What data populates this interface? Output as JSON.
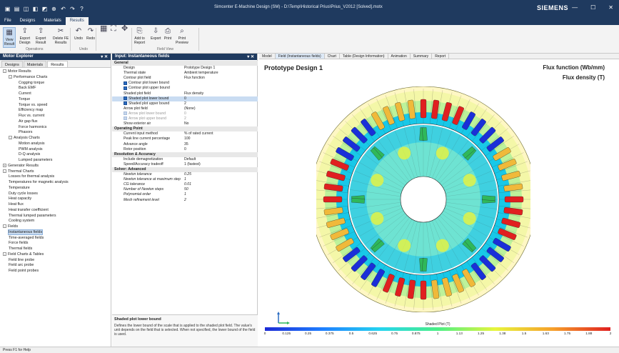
{
  "window": {
    "title": "Simcenter E-Machine Design (SM) - D:\\Temp\\Historical Prius\\Prius_V2012 [Solved].motx",
    "brand": "SIEMENS",
    "controls": [
      "—",
      "☐",
      "✕"
    ]
  },
  "titlebar_icons": [
    "▣",
    "▤",
    "◫",
    "◧",
    "◩",
    "⊕",
    "↶",
    "↷",
    "?"
  ],
  "menu": [
    "File",
    "Designs",
    "Materials",
    "Results"
  ],
  "ribbon": {
    "buttons": [
      {
        "label": "View\nResult",
        "icon": "▦",
        "name": "view-result-button"
      },
      {
        "label": "Export\nDesign",
        "icon": "⇪",
        "name": "export-design-button"
      },
      {
        "label": "Export\nResult",
        "icon": "⇧",
        "name": "export-result-button"
      },
      {
        "label": "Delete FE\nResults",
        "icon": "✂",
        "name": "delete-fe-results-button"
      },
      {
        "label": "Undo",
        "icon": "↶",
        "name": "undo-button"
      },
      {
        "label": "Redo",
        "icon": "↷",
        "name": "redo-button"
      },
      {
        "label": "Add to\nReport",
        "icon": "⎘",
        "name": "add-to-report-button"
      },
      {
        "label": "Export",
        "icon": "⇩",
        "name": "export-button"
      },
      {
        "label": "Print",
        "icon": "⎙",
        "name": "print-button"
      },
      {
        "label": "Print\nPreview",
        "icon": "⌕",
        "name": "print-preview-button"
      }
    ],
    "groups": [
      "Operations",
      "Undo",
      "Field View"
    ]
  },
  "explorer": {
    "title": "Motor Explorer",
    "tabs": [
      "Designs",
      "Materials",
      "Results"
    ],
    "tree": [
      {
        "label": "Motor Results",
        "level": 0,
        "toggle": "-"
      },
      {
        "label": "Performance Charts",
        "level": 1,
        "toggle": "-"
      },
      {
        "label": "Cogging torque",
        "level": 2
      },
      {
        "label": "Back EMF",
        "level": 2
      },
      {
        "label": "Current",
        "level": 2
      },
      {
        "label": "Torque",
        "level": 2
      },
      {
        "label": "Torque vs. speed",
        "level": 2
      },
      {
        "label": "Efficiency map",
        "level": 2
      },
      {
        "label": "Flux vs. current",
        "level": 2
      },
      {
        "label": "Air gap flux",
        "level": 2
      },
      {
        "label": "Force harmonics",
        "level": 2
      },
      {
        "label": "Phasors",
        "level": 2
      },
      {
        "label": "Analysis Charts",
        "level": 1,
        "toggle": "-"
      },
      {
        "label": "Motion analysis",
        "level": 2
      },
      {
        "label": "PWM analysis",
        "level": 2
      },
      {
        "label": "D-Q analysis",
        "level": 2
      },
      {
        "label": "Lumped parameters",
        "level": 2
      },
      {
        "label": "Generator Results",
        "level": 0,
        "toggle": "+"
      },
      {
        "label": "Thermal Charts",
        "level": 0,
        "toggle": "-"
      },
      {
        "label": "Losses for thermal analysis",
        "level": 1
      },
      {
        "label": "Temperatures for magnetic analysis",
        "level": 1
      },
      {
        "label": "Temperature",
        "level": 1
      },
      {
        "label": "Duty cycle losses",
        "level": 1
      },
      {
        "label": "Heat capacity",
        "level": 1
      },
      {
        "label": "Heat flux",
        "level": 1
      },
      {
        "label": "Heat transfer coefficient",
        "level": 1
      },
      {
        "label": "Thermal lumped parameters",
        "level": 1
      },
      {
        "label": "Cooling system",
        "level": 1
      },
      {
        "label": "Fields",
        "level": 0,
        "toggle": "-"
      },
      {
        "label": "Instantaneous fields",
        "level": 1,
        "selected": true
      },
      {
        "label": "Time-averaged fields",
        "level": 1
      },
      {
        "label": "Force fields",
        "level": 1
      },
      {
        "label": "Thermal fields",
        "level": 1
      },
      {
        "label": "Field Charts & Tables",
        "level": 0,
        "toggle": "-"
      },
      {
        "label": "Field line probe",
        "level": 1
      },
      {
        "label": "Field arc probe",
        "level": 1
      },
      {
        "label": "Field point probes",
        "level": 1
      }
    ]
  },
  "input": {
    "title": "Input: Instantaneous fields",
    "rows": [
      {
        "cat": "General"
      },
      {
        "k": "Design",
        "v": "Prototype Design 1"
      },
      {
        "k": "Thermal state",
        "v": "Ambient temperature"
      },
      {
        "k": "Contour plot field",
        "v": "Flux function"
      },
      {
        "k": "Contour plot lower bound",
        "v": "",
        "cb": true
      },
      {
        "k": "Contour plot upper bound",
        "v": "",
        "cb": true
      },
      {
        "k": "Shaded plot field",
        "v": "Flux density"
      },
      {
        "k": "Shaded plot lower bound",
        "v": "0",
        "cb": true,
        "hl": true
      },
      {
        "k": "Shaded plot upper bound",
        "v": "2",
        "cb": true
      },
      {
        "k": "Arrow plot field",
        "v": "(None)"
      },
      {
        "k": "Arrow plot lower bound",
        "v": "0",
        "cb": "off",
        "dim": true
      },
      {
        "k": "Arrow plot upper bound",
        "v": "2",
        "cb": "off",
        "dim": true
      },
      {
        "k": "Show exterior air",
        "v": "No"
      },
      {
        "cat": "Operating Point"
      },
      {
        "k": "Current input method",
        "v": "% of rated current"
      },
      {
        "k": "Peak line current percentage",
        "v": "100"
      },
      {
        "k": "Advance angle",
        "v": "35"
      },
      {
        "k": "Rotor position",
        "v": "0"
      },
      {
        "cat": "Resolution & Accuracy"
      },
      {
        "k": "Include demagnetization",
        "v": "Default"
      },
      {
        "k": "Speed/Accuracy tradeoff",
        "v": "1 (fastest)"
      },
      {
        "cat": "Solver: Advanced"
      },
      {
        "k": "Newton tolerance",
        "v": "0.25",
        "it": true
      },
      {
        "k": "Newton tolerance at maximum step",
        "v": "1",
        "it": true
      },
      {
        "k": "CG tolerance",
        "v": "0.01",
        "it": true
      },
      {
        "k": "Number of Newton steps",
        "v": "50",
        "it": true
      },
      {
        "k": "Polynomial order",
        "v": "1",
        "it": true
      },
      {
        "k": "Mesh refinement level",
        "v": "2",
        "it": true
      }
    ],
    "desc_title": "Shaded plot lower bound",
    "desc_text": "Defines the lower bound of the scale that is applied to the shaded plot field. The value's unit depends on the field that is selected. When not specified, the lower bound of the field is used."
  },
  "view": {
    "tabs": [
      "Model",
      "Field (Instantaneous fields)",
      "Chart",
      "Table (Design Information)",
      "Animation",
      "Summary",
      "Report"
    ],
    "active_tab": 1,
    "plot_title": "Prototype Design 1",
    "field_1": "Flux function (Wb/mm)",
    "field_2": "Flux density (T)",
    "scale_title": "Shaded Plot (T)",
    "scale_ticks": [
      "0",
      "0.125",
      "0.25",
      "0.375",
      "0.5",
      "0.625",
      "0.75",
      "0.875",
      "1",
      "1.13",
      "1.25",
      "1.38",
      "1.5",
      "1.63",
      "1.75",
      "1.88",
      "2"
    ],
    "colors": {
      "stator": "#18c8e8",
      "rotor": "#1ec5d6",
      "red": "#e02020",
      "blue": "#1a2fd8",
      "green": "#2fb85a",
      "yellow": "#e8f23c"
    }
  },
  "status": "Press F1 for Help"
}
